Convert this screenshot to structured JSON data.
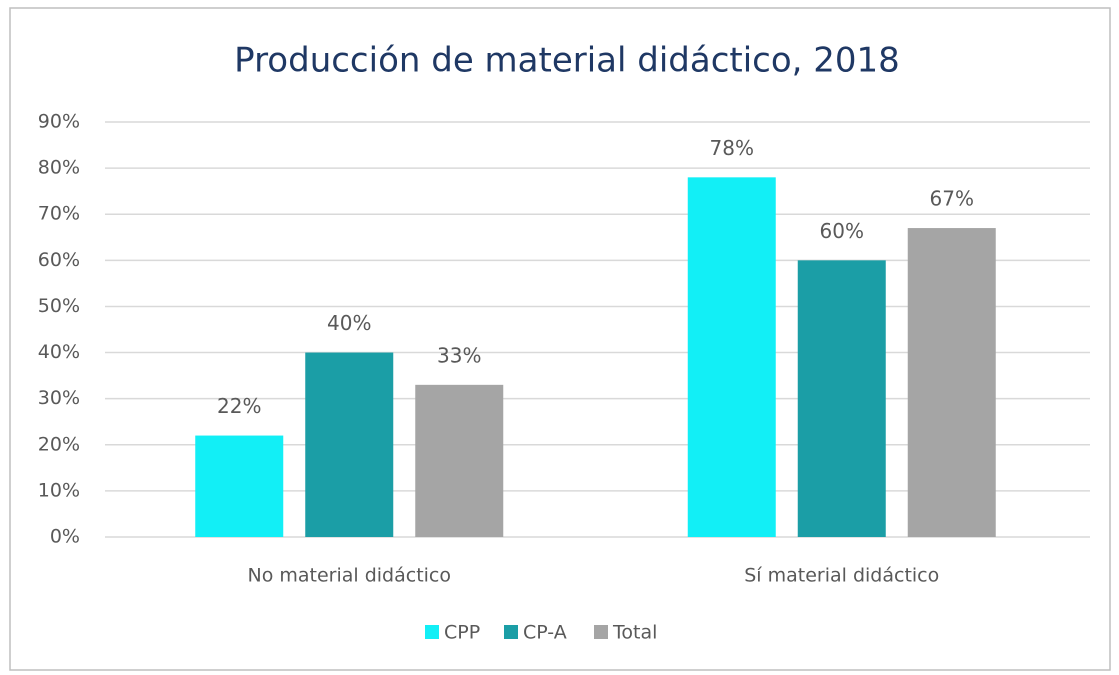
{
  "chart_data": {
    "type": "bar",
    "title": "Producción de material didáctico, 2018",
    "categories": [
      "No material didáctico",
      "Sí material didáctico"
    ],
    "series": [
      {
        "name": "CPP",
        "color": "#12eff6",
        "values": [
          22,
          78
        ],
        "value_labels": [
          "22%",
          "78%"
        ]
      },
      {
        "name": "CP-A",
        "color": "#1b9ea6",
        "values": [
          40,
          60
        ],
        "value_labels": [
          "40%",
          "60%"
        ]
      },
      {
        "name": "Total",
        "color": "#a5a5a5",
        "values": [
          33,
          67
        ],
        "value_labels": [
          "33%",
          "67%"
        ]
      }
    ],
    "ylim": [
      0,
      90
    ],
    "yticks": [
      {
        "value": 0,
        "label": "0%"
      },
      {
        "value": 10,
        "label": "10%"
      },
      {
        "value": 20,
        "label": "20%"
      },
      {
        "value": 30,
        "label": "30%"
      },
      {
        "value": 40,
        "label": "40%"
      },
      {
        "value": 50,
        "label": "50%"
      },
      {
        "value": 60,
        "label": "60%"
      },
      {
        "value": 70,
        "label": "70%"
      },
      {
        "value": 80,
        "label": "80%"
      },
      {
        "value": 90,
        "label": "90%"
      }
    ],
    "grid": true,
    "legend": "bottom"
  }
}
